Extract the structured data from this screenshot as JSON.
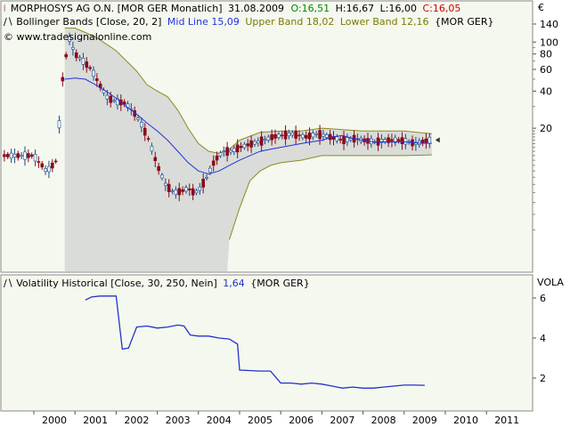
{
  "header": {
    "instrument": "MORPHOSYS AG O.N. [MOR GER  Monatlich]",
    "date": "31.08.2009",
    "open": "O:16,51",
    "high": "H:16,67",
    "low": "L:16,00",
    "close": "C:16,05",
    "bb_label": "Bollinger Bands [Close, 20, 2]",
    "bb_mid": "Mid Line 15,09",
    "bb_upper": "Upper Band 18,02",
    "bb_lower": "Lower Band 12,16",
    "bb_symbol": "{MOR GER}",
    "copyright": "© www.tradesignalonline.com",
    "currency": "€",
    "vol_label": "Volatility Historical [Close, 30, 250, Nein]",
    "vol_value": "1,64",
    "vol_symbol": "{MOR GER}",
    "vol_axis": "VOLA"
  },
  "colors": {
    "background": "#f5f8ee",
    "band_fill": "#d9dcd8",
    "band_edge": "#8b8b22",
    "mid_line": "#2233dd",
    "vol_line": "#2233cc",
    "candle_down": "#8b0a1a",
    "candle_up": "#1a4a8a",
    "open_green": "#008800",
    "close_red": "#cc0000",
    "olive": "#7a7a00"
  },
  "chart_data": [
    {
      "type": "line",
      "panel": "price",
      "x_unit": "year",
      "x_ticks": [
        "2000",
        "2001",
        "2002",
        "2003",
        "2004",
        "2005",
        "2006",
        "2007",
        "2008",
        "2009",
        "2010",
        "2011"
      ],
      "y_ticks": [
        140,
        100,
        80,
        60,
        40,
        20
      ],
      "y_scale": "log",
      "series": [
        {
          "name": "Mid Line",
          "x": [
            2000.75,
            2001.0,
            2001.25,
            2001.5,
            2001.75,
            2002.0,
            2002.25,
            2002.5,
            2002.75,
            2003.0,
            2003.25,
            2003.5,
            2003.75,
            2004.0,
            2004.25,
            2004.5,
            2004.75,
            2005.0,
            2005.25,
            2005.5,
            2005.75,
            2006.0,
            2006.25,
            2006.5,
            2006.75,
            2007.0,
            2007.25,
            2007.5,
            2007.75,
            2008.0,
            2008.25,
            2008.5,
            2008.75,
            2009.0,
            2009.25,
            2009.5,
            2009.67
          ],
          "y": [
            50,
            51,
            50,
            45,
            40,
            35,
            30,
            26,
            22,
            19,
            16,
            13,
            10.5,
            9,
            8.5,
            9,
            10,
            11,
            12,
            13,
            13.5,
            14,
            14.5,
            15,
            15.5,
            16,
            17,
            17.5,
            16.5,
            16,
            15.5,
            15.5,
            15.5,
            15.5,
            15.2,
            15.1,
            15.09
          ]
        },
        {
          "name": "Upper Band",
          "x": [
            2000.75,
            2001.0,
            2001.5,
            2002.0,
            2002.5,
            2002.75,
            2003.0,
            2003.25,
            2003.5,
            2003.75,
            2004.0,
            2004.25,
            2004.5,
            2004.75,
            2005.0,
            2005.5,
            2006.0,
            2006.5,
            2007.0,
            2007.5,
            2008.0,
            2008.5,
            2009.0,
            2009.67
          ],
          "y": [
            130,
            130,
            110,
            85,
            58,
            45,
            40,
            36,
            28,
            20,
            15,
            13,
            12.5,
            13.5,
            16,
            18.5,
            19,
            19,
            20,
            19.5,
            19,
            19,
            19,
            18.02
          ]
        },
        {
          "name": "Lower Band",
          "x": [
            2004.75,
            2005.0,
            2005.25,
            2005.5,
            2005.75,
            2006.0,
            2006.5,
            2007.0,
            2007.5,
            2008.0,
            2008.5,
            2009.0,
            2009.67
          ],
          "y": [
            2.5,
            4.5,
            7.5,
            9,
            10,
            10.5,
            11,
            12,
            12,
            12,
            12,
            12,
            12.16
          ]
        }
      ],
      "last_close": 16.05
    },
    {
      "type": "line",
      "panel": "volatility",
      "y_ticks": [
        6,
        4,
        2
      ],
      "series": [
        {
          "name": "Volatility Historical",
          "x": [
            2001.25,
            2001.4,
            2001.6,
            2002.0,
            2002.15,
            2002.3,
            2002.5,
            2002.75,
            2003.0,
            2003.25,
            2003.5,
            2003.65,
            2003.8,
            2004.0,
            2004.25,
            2004.5,
            2004.75,
            2004.95,
            2005.0,
            2005.5,
            2005.75,
            2006.0,
            2006.25,
            2006.5,
            2006.75,
            2007.0,
            2007.25,
            2007.5,
            2007.75,
            2008.0,
            2008.25,
            2008.5,
            2008.75,
            2009.0,
            2009.25,
            2009.5
          ],
          "y": [
            5.9,
            6.05,
            6.1,
            6.1,
            3.45,
            3.5,
            4.55,
            4.6,
            4.5,
            4.55,
            4.65,
            4.6,
            4.15,
            4.1,
            4.1,
            4.0,
            3.95,
            3.7,
            2.4,
            2.35,
            2.35,
            1.75,
            1.75,
            1.7,
            1.75,
            1.7,
            1.6,
            1.5,
            1.55,
            1.5,
            1.5,
            1.55,
            1.6,
            1.65,
            1.65,
            1.64
          ]
        }
      ],
      "last_value": 1.64
    }
  ]
}
